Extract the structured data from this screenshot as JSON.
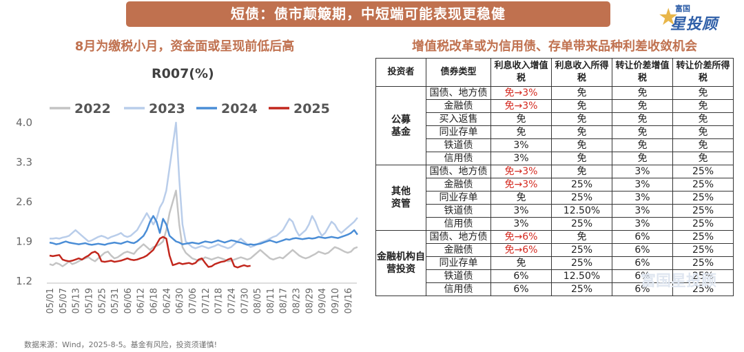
{
  "banner": "短债：债市颠簸期，中短端可能表现更稳健",
  "logo": {
    "top": "富国",
    "main": "星投顾"
  },
  "left_subtitle": "8月为缴税小月，资金面或呈现前低后高",
  "right_subtitle": "增值税改革或为信用债、存单带来品种利差收敛机会",
  "source": "数据来源：Wind，2025-8-5。基金有风险，投资须谨慎!",
  "watermark": "富国星投顾",
  "chart_data": {
    "type": "line",
    "title": "R007(%)",
    "ylim": [
      1.2,
      4.0
    ],
    "yticks": [
      "4.0",
      "3.3",
      "2.6",
      "1.9",
      "1.2"
    ],
    "legend_position": "top",
    "x_labels": [
      "05/01",
      "05/07",
      "05/13",
      "05/19",
      "05/25",
      "05/31",
      "06/06",
      "06/12",
      "06/18",
      "06/24",
      "06/30",
      "07/06",
      "07/12",
      "07/18",
      "07/24",
      "07/30",
      "08/05",
      "08/11",
      "08/17",
      "08/23",
      "08/29",
      "09/04",
      "09/10",
      "09/16"
    ],
    "series": [
      {
        "name": "2022",
        "color": "#c4c4c4",
        "step": 0.25,
        "values": [
          1.5,
          1.48,
          1.52,
          1.5,
          1.46,
          1.5,
          1.55,
          1.5,
          1.52,
          1.55,
          1.58,
          1.6,
          1.62,
          1.58,
          1.55,
          1.6,
          1.65,
          1.7,
          1.72,
          1.65,
          1.6,
          1.62,
          1.66,
          1.7,
          1.72,
          1.7,
          1.68,
          1.75,
          1.8,
          1.85,
          1.8,
          1.75,
          1.8,
          1.82,
          1.85,
          1.9,
          2.1,
          2.4,
          2.6,
          2.8,
          2.2,
          1.8,
          1.7,
          1.65,
          1.6,
          1.58,
          1.56,
          1.58,
          1.62,
          1.6,
          1.58,
          1.6,
          1.62,
          1.6,
          1.58,
          1.55,
          1.56,
          1.58,
          1.6,
          1.62,
          1.6,
          1.58,
          1.6,
          1.65,
          1.7,
          1.75,
          1.7,
          1.65,
          1.6,
          1.58,
          1.6,
          1.62,
          1.6,
          1.65,
          1.7,
          1.75,
          1.7,
          1.65,
          1.62,
          1.6,
          1.62,
          1.65,
          1.68,
          1.72,
          1.7,
          1.68,
          1.7,
          1.75,
          1.8,
          1.78,
          1.75,
          1.72,
          1.7,
          1.72,
          1.78,
          1.8
        ]
      },
      {
        "name": "2023",
        "color": "#b9cdea",
        "step": 0.25,
        "values": [
          1.95,
          1.95,
          1.96,
          1.95,
          1.97,
          1.98,
          2.0,
          2.05,
          2.1,
          2.05,
          2.0,
          1.95,
          1.9,
          1.92,
          1.95,
          1.98,
          2.0,
          1.98,
          1.95,
          1.98,
          2.0,
          2.02,
          2.05,
          2.0,
          1.98,
          2.0,
          2.05,
          2.1,
          2.2,
          2.3,
          2.4,
          2.3,
          2.2,
          2.3,
          2.5,
          2.6,
          2.8,
          3.2,
          3.6,
          4.0,
          3.0,
          2.2,
          1.9,
          1.85,
          1.8,
          1.78,
          1.8,
          1.82,
          1.8,
          1.78,
          1.8,
          1.82,
          1.85,
          1.82,
          1.8,
          1.78,
          1.8,
          1.85,
          1.9,
          1.95,
          1.9,
          1.85,
          1.8,
          1.82,
          1.85,
          1.88,
          1.9,
          1.92,
          1.95,
          1.98,
          2.0,
          2.05,
          2.1,
          2.2,
          2.3,
          2.25,
          2.1,
          2.0,
          2.05,
          2.1,
          2.2,
          2.35,
          2.25,
          2.1,
          2.0,
          2.05,
          2.15,
          2.25,
          2.2,
          2.1,
          2.05,
          2.1,
          2.15,
          2.2,
          2.25,
          2.32
        ]
      },
      {
        "name": "2024",
        "color": "#4a8dd6",
        "step": 0.25,
        "values": [
          1.88,
          1.87,
          1.85,
          1.86,
          1.88,
          1.9,
          1.88,
          1.87,
          1.86,
          1.85,
          1.86,
          1.87,
          1.85,
          1.84,
          1.85,
          1.86,
          1.85,
          1.84,
          1.86,
          1.87,
          1.88,
          1.87,
          1.86,
          1.88,
          1.9,
          1.88,
          1.87,
          1.9,
          1.95,
          2.0,
          2.1,
          2.25,
          2.35,
          2.25,
          2.05,
          2.3,
          2.2,
          2.0,
          1.95,
          1.9,
          1.88,
          1.85,
          1.86,
          1.87,
          1.88,
          1.87,
          1.86,
          1.88,
          1.9,
          1.89,
          1.88,
          1.9,
          1.92,
          1.9,
          1.88,
          1.9,
          1.92,
          1.91,
          1.89,
          1.88,
          1.86,
          1.84,
          1.85,
          1.84,
          1.85,
          1.86,
          1.88,
          1.9,
          1.92,
          1.9,
          1.88,
          1.9,
          1.92,
          1.94,
          1.93,
          1.95,
          1.96,
          1.95,
          1.94,
          1.95,
          1.96,
          1.95,
          1.96,
          1.98,
          1.97,
          1.96,
          1.97,
          1.98,
          1.97,
          1.96,
          1.98,
          2.0,
          2.02,
          2.05,
          2.1,
          2.02
        ]
      },
      {
        "name": "2025",
        "color": "#c2271d",
        "step": 0.25,
        "values": [
          1.65,
          1.64,
          1.65,
          1.66,
          1.58,
          1.56,
          1.55,
          1.56,
          1.58,
          1.6,
          1.58,
          1.62,
          1.65,
          1.7,
          1.72,
          1.68,
          1.55,
          1.54,
          1.55,
          1.56,
          1.54,
          1.55,
          1.56,
          1.58,
          1.6,
          1.58,
          1.57,
          1.58,
          1.6,
          1.62,
          1.65,
          1.7,
          1.75,
          1.85,
          1.95,
          1.98,
          1.95,
          1.65,
          1.48,
          1.5,
          1.52,
          1.5,
          1.51,
          1.52,
          1.5,
          1.52,
          1.58,
          1.6,
          1.52,
          1.45,
          1.46,
          1.5,
          1.52,
          1.54,
          1.55,
          1.58,
          1.6,
          1.46,
          1.44,
          1.46,
          1.48,
          1.46,
          1.47
        ]
      }
    ]
  },
  "table": {
    "headers": [
      "投资者",
      "债券类型",
      "利息收入增值税",
      "利息收入所得税",
      "转让价差增值税",
      "转让价差所得税"
    ],
    "groups": [
      {
        "investor": "公募基金",
        "rows": [
          [
            "国债、地方债",
            "免→3%",
            "免",
            "免",
            "免"
          ],
          [
            "金融债",
            "免→3%",
            "免",
            "免",
            "免"
          ],
          [
            "买入返售",
            "免",
            "免",
            "免",
            "免"
          ],
          [
            "同业存单",
            "免",
            "免",
            "免",
            "免"
          ],
          [
            "铁道债",
            "3%",
            "免",
            "免",
            "免"
          ],
          [
            "信用债",
            "3%",
            "免",
            "免",
            "免"
          ]
        ]
      },
      {
        "investor": "其他资管",
        "rows": [
          [
            "国债、地方债",
            "免→3%",
            "免",
            "3%",
            "25%"
          ],
          [
            "金融债",
            "免→3%",
            "25%",
            "3%",
            "25%"
          ],
          [
            "同业存单",
            "免",
            "25%",
            "3%",
            "25%"
          ],
          [
            "铁道债",
            "3%",
            "12.50%",
            "3%",
            "25%"
          ],
          [
            "信用债",
            "3%",
            "25%",
            "3%",
            "25%"
          ]
        ]
      },
      {
        "investor": "金融机构自营投资",
        "rows": [
          [
            "国债、地方债",
            "免→6%",
            "免",
            "6%",
            "25%"
          ],
          [
            "金融债",
            "免→6%",
            "25%",
            "6%",
            "25%"
          ],
          [
            "同业存单",
            "免",
            "25%",
            "6%",
            "25%"
          ],
          [
            "铁道债",
            "6%",
            "12.50%",
            "6%",
            "25%"
          ],
          [
            "信用债",
            "6%",
            "25%",
            "6%",
            "25%"
          ]
        ]
      }
    ],
    "highlight_color": "#d42a20"
  }
}
